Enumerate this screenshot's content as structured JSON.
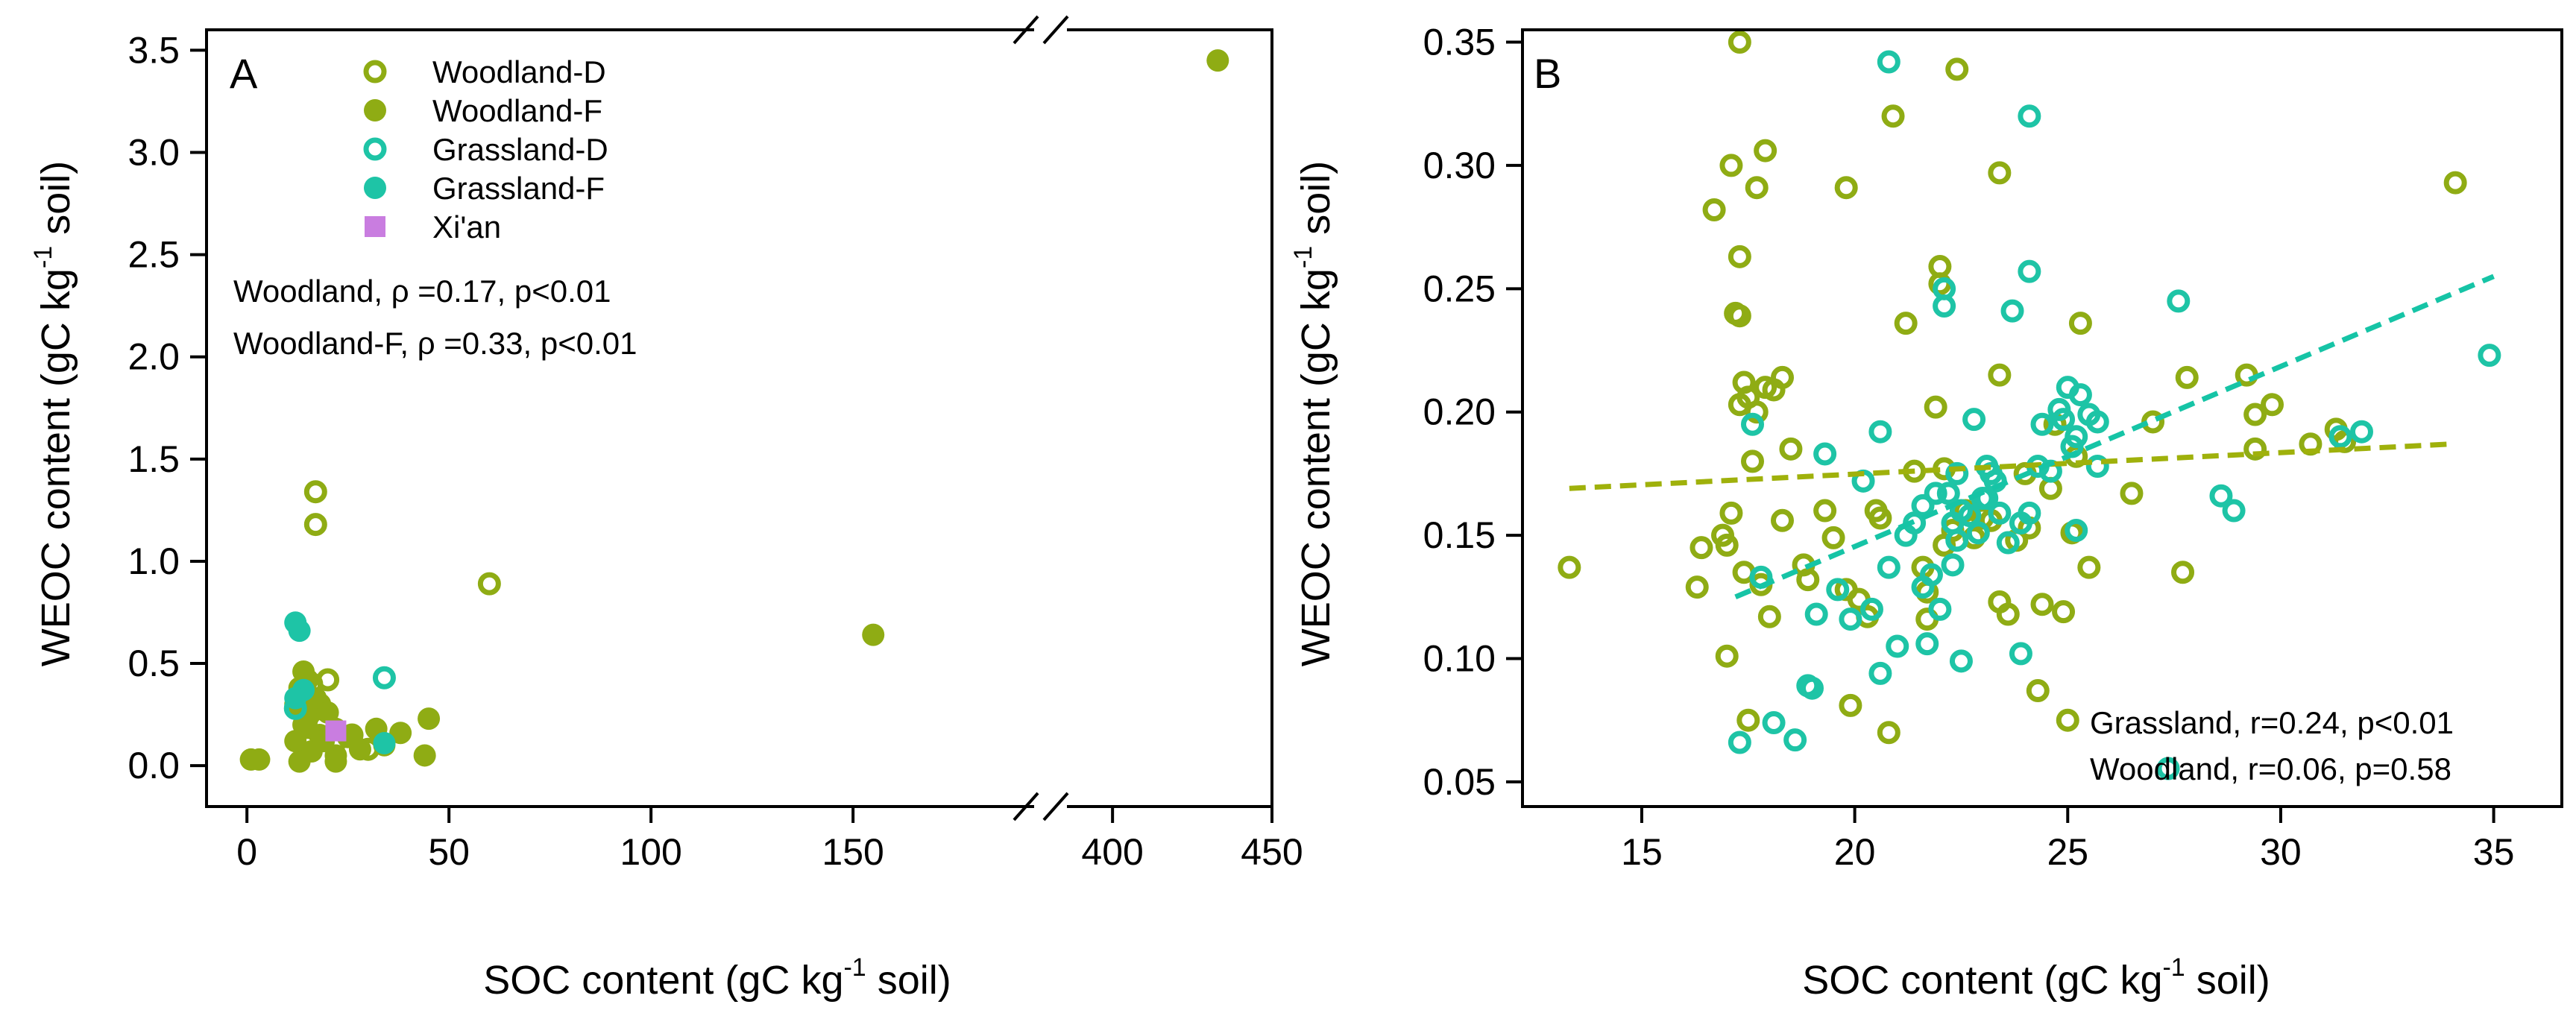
{
  "colors": {
    "woodland": "#8fac14",
    "grassland": "#1ec4a6",
    "xian": "#c97de0",
    "woodland_fit": "#9fb10b",
    "grassland_fit": "#16c4a6"
  },
  "chart_data": [
    {
      "type": "scatter",
      "panel": "A",
      "xlabel": "SOC content (gC kg⁻¹ soil)",
      "ylabel": "WEOC content (gC kg⁻¹ soil)",
      "xlim_segments": [
        [
          -10,
          195
        ],
        [
          385,
          450
        ]
      ],
      "x_break": true,
      "ylim": [
        -0.2,
        3.6
      ],
      "xticks": [
        0,
        50,
        100,
        150,
        400,
        450
      ],
      "yticks": [
        0.0,
        0.5,
        1.0,
        1.5,
        2.0,
        2.5,
        3.0,
        3.5
      ],
      "ytick_labels": [
        "0.0",
        "0.5",
        "1.0",
        "1.5",
        "2.0",
        "2.5",
        "3.0",
        "3.5"
      ],
      "legend": [
        {
          "name": "Woodland-D",
          "marker": "open-circle",
          "color": "#8fac14"
        },
        {
          "name": "Woodland-F",
          "marker": "filled-circle",
          "color": "#8fac14"
        },
        {
          "name": "Grassland-D",
          "marker": "open-circle",
          "color": "#1ec4a6"
        },
        {
          "name": "Grassland-F",
          "marker": "filled-circle",
          "color": "#1ec4a6"
        },
        {
          "name": "Xi'an",
          "marker": "filled-square",
          "color": "#c97de0"
        }
      ],
      "annotations": [
        "Woodland, ρ =0.17, p<0.01",
        "Woodland-F, ρ =0.33, p<0.01"
      ],
      "series": [
        {
          "name": "Woodland-D",
          "points": [
            [
              17,
              1.34
            ],
            [
              17,
              1.18
            ],
            [
              60,
              0.89
            ],
            [
              20,
              0.42
            ],
            [
              16,
              0.4
            ],
            [
              18,
              0.3
            ],
            [
              26,
              0.15
            ],
            [
              22,
              0.12
            ],
            [
              30,
              0.08
            ],
            [
              14,
              0.32
            ],
            [
              15,
              0.1
            ],
            [
              19,
              0.2
            ]
          ]
        },
        {
          "name": "Woodland-F",
          "points": [
            [
              433,
              3.45
            ],
            [
              155,
              0.64
            ],
            [
              14,
              0.46
            ],
            [
              15,
              0.42
            ],
            [
              13,
              0.38
            ],
            [
              17,
              0.33
            ],
            [
              12,
              0.3
            ],
            [
              15,
              0.25
            ],
            [
              20,
              0.26
            ],
            [
              14,
              0.2
            ],
            [
              22,
              0.18
            ],
            [
              18,
              0.15
            ],
            [
              25,
              0.14
            ],
            [
              32,
              0.18
            ],
            [
              38,
              0.16
            ],
            [
              45,
              0.23
            ],
            [
              44,
              0.05
            ],
            [
              28,
              0.08
            ],
            [
              22,
              0.05
            ],
            [
              16,
              0.07
            ],
            [
              13,
              0.02
            ],
            [
              22,
              0.02
            ],
            [
              1,
              0.03
            ],
            [
              3,
              0.03
            ],
            [
              34,
              0.1
            ],
            [
              12,
              0.12
            ],
            [
              19,
              0.12
            ]
          ]
        },
        {
          "name": "Grassland-D",
          "points": [
            [
              34,
              0.43
            ],
            [
              12,
              0.28
            ]
          ]
        },
        {
          "name": "Grassland-F",
          "points": [
            [
              12,
              0.7
            ],
            [
              13,
              0.66
            ],
            [
              14,
              0.37
            ],
            [
              12,
              0.33
            ],
            [
              34,
              0.11
            ]
          ]
        },
        {
          "name": "Xi'an",
          "points": [
            [
              22,
              0.17
            ]
          ]
        }
      ]
    },
    {
      "type": "scatter",
      "panel": "B",
      "xlabel": "SOC content (gC kg⁻¹ soil)",
      "ylabel": "WEOC content (gC kg⁻¹ soil)",
      "xlim": [
        12.2,
        36.6
      ],
      "ylim": [
        0.04,
        0.355
      ],
      "xticks": [
        15,
        20,
        25,
        30,
        35
      ],
      "yticks": [
        0.05,
        0.1,
        0.15,
        0.2,
        0.25,
        0.3,
        0.35
      ],
      "ytick_labels": [
        "0.05",
        "0.10",
        "0.15",
        "0.20",
        "0.25",
        "0.30",
        "0.35"
      ],
      "annotations": [
        "Grassland, r=0.24, p<0.01",
        "Woodland, r=0.06, p=0.58"
      ],
      "fits": [
        {
          "name": "Woodland",
          "color": "#9fb10b",
          "x": [
            13.3,
            34.0
          ],
          "y": [
            0.169,
            0.187
          ]
        },
        {
          "name": "Grassland",
          "color": "#16c4a6",
          "x": [
            17.2,
            35.0
          ],
          "y": [
            0.125,
            0.255
          ]
        }
      ],
      "series": [
        {
          "name": "Woodland",
          "color": "#8fac14",
          "points": [
            [
              13.3,
              0.137
            ],
            [
              16.3,
              0.129
            ],
            [
              16.4,
              0.145
            ],
            [
              16.7,
              0.282
            ],
            [
              16.9,
              0.15
            ],
            [
              17.0,
              0.146
            ],
            [
              17.1,
              0.159
            ],
            [
              17.0,
              0.101
            ],
            [
              17.1,
              0.3
            ],
            [
              17.3,
              0.35
            ],
            [
              17.2,
              0.24
            ],
            [
              17.3,
              0.239
            ],
            [
              17.3,
              0.263
            ],
            [
              17.3,
              0.203
            ],
            [
              17.4,
              0.212
            ],
            [
              17.5,
              0.206
            ],
            [
              17.6,
              0.18
            ],
            [
              17.7,
              0.291
            ],
            [
              17.9,
              0.306
            ],
            [
              17.7,
              0.2
            ],
            [
              17.9,
              0.21
            ],
            [
              18.0,
              0.117
            ],
            [
              17.5,
              0.075
            ],
            [
              17.4,
              0.135
            ],
            [
              17.8,
              0.13
            ],
            [
              18.1,
              0.209
            ],
            [
              18.3,
              0.214
            ],
            [
              18.3,
              0.156
            ],
            [
              18.5,
              0.185
            ],
            [
              18.8,
              0.138
            ],
            [
              18.9,
              0.132
            ],
            [
              19.3,
              0.16
            ],
            [
              19.5,
              0.149
            ],
            [
              19.8,
              0.291
            ],
            [
              19.8,
              0.128
            ],
            [
              19.9,
              0.081
            ],
            [
              20.1,
              0.124
            ],
            [
              20.3,
              0.117
            ],
            [
              20.5,
              0.16
            ],
            [
              20.6,
              0.157
            ],
            [
              20.8,
              0.07
            ],
            [
              20.9,
              0.32
            ],
            [
              21.2,
              0.236
            ],
            [
              21.4,
              0.176
            ],
            [
              21.6,
              0.137
            ],
            [
              21.7,
              0.127
            ],
            [
              21.9,
              0.202
            ],
            [
              22.0,
              0.259
            ],
            [
              22.0,
              0.252
            ],
            [
              22.1,
              0.177
            ],
            [
              22.4,
              0.339
            ],
            [
              22.1,
              0.146
            ],
            [
              22.3,
              0.152
            ],
            [
              22.6,
              0.16
            ],
            [
              22.8,
              0.149
            ],
            [
              23.0,
              0.157
            ],
            [
              23.2,
              0.156
            ],
            [
              23.4,
              0.297
            ],
            [
              23.4,
              0.215
            ],
            [
              23.6,
              0.118
            ],
            [
              23.4,
              0.123
            ],
            [
              23.8,
              0.148
            ],
            [
              24.0,
              0.175
            ],
            [
              24.1,
              0.153
            ],
            [
              24.3,
              0.087
            ],
            [
              24.4,
              0.122
            ],
            [
              24.6,
              0.169
            ],
            [
              24.7,
              0.195
            ],
            [
              24.9,
              0.119
            ],
            [
              25.0,
              0.075
            ],
            [
              25.3,
              0.236
            ],
            [
              25.5,
              0.137
            ],
            [
              25.2,
              0.182
            ],
            [
              25.1,
              0.151
            ],
            [
              26.5,
              0.167
            ],
            [
              27.0,
              0.196
            ],
            [
              27.7,
              0.135
            ],
            [
              27.8,
              0.214
            ],
            [
              29.2,
              0.215
            ],
            [
              29.4,
              0.185
            ],
            [
              29.4,
              0.199
            ],
            [
              29.8,
              0.203
            ],
            [
              30.7,
              0.187
            ],
            [
              31.3,
              0.193
            ],
            [
              31.5,
              0.188
            ],
            [
              34.1,
              0.293
            ],
            [
              21.7,
              0.116
            ]
          ]
        },
        {
          "name": "Grassland",
          "color": "#1ec4a6",
          "points": [
            [
              17.3,
              0.066
            ],
            [
              17.6,
              0.195
            ],
            [
              17.8,
              0.133
            ],
            [
              18.1,
              0.074
            ],
            [
              18.6,
              0.067
            ],
            [
              18.9,
              0.089
            ],
            [
              19.0,
              0.088
            ],
            [
              19.1,
              0.118
            ],
            [
              19.3,
              0.183
            ],
            [
              19.6,
              0.128
            ],
            [
              19.9,
              0.116
            ],
            [
              20.2,
              0.172
            ],
            [
              20.4,
              0.12
            ],
            [
              20.6,
              0.094
            ],
            [
              20.6,
              0.192
            ],
            [
              20.8,
              0.137
            ],
            [
              20.8,
              0.342
            ],
            [
              21.0,
              0.105
            ],
            [
              21.2,
              0.15
            ],
            [
              21.4,
              0.155
            ],
            [
              21.6,
              0.162
            ],
            [
              21.6,
              0.129
            ],
            [
              21.7,
              0.106
            ],
            [
              21.8,
              0.134
            ],
            [
              21.9,
              0.167
            ],
            [
              22.0,
              0.12
            ],
            [
              22.1,
              0.25
            ],
            [
              22.1,
              0.243
            ],
            [
              22.2,
              0.167
            ],
            [
              22.3,
              0.138
            ],
            [
              22.3,
              0.155
            ],
            [
              22.4,
              0.175
            ],
            [
              22.5,
              0.099
            ],
            [
              22.5,
              0.16
            ],
            [
              22.7,
              0.158
            ],
            [
              22.8,
              0.197
            ],
            [
              22.9,
              0.151
            ],
            [
              23.0,
              0.165
            ],
            [
              23.1,
              0.178
            ],
            [
              23.1,
              0.165
            ],
            [
              23.2,
              0.175
            ],
            [
              23.3,
              0.172
            ],
            [
              23.6,
              0.147
            ],
            [
              23.7,
              0.241
            ],
            [
              23.9,
              0.102
            ],
            [
              23.9,
              0.155
            ],
            [
              24.1,
              0.32
            ],
            [
              24.1,
              0.257
            ],
            [
              24.1,
              0.159
            ],
            [
              24.3,
              0.178
            ],
            [
              24.4,
              0.195
            ],
            [
              24.6,
              0.176
            ],
            [
              24.8,
              0.201
            ],
            [
              24.9,
              0.197
            ],
            [
              25.0,
              0.21
            ],
            [
              25.1,
              0.186
            ],
            [
              25.2,
              0.19
            ],
            [
              25.3,
              0.207
            ],
            [
              25.5,
              0.199
            ],
            [
              25.7,
              0.178
            ],
            [
              25.7,
              0.196
            ],
            [
              27.6,
              0.245
            ],
            [
              28.6,
              0.166
            ],
            [
              28.9,
              0.16
            ],
            [
              31.4,
              0.19
            ],
            [
              31.9,
              0.192
            ],
            [
              34.9,
              0.223
            ],
            [
              25.2,
              0.152
            ],
            [
              22.4,
              0.148
            ],
            [
              23.4,
              0.159
            ]
          ]
        }
      ]
    }
  ]
}
